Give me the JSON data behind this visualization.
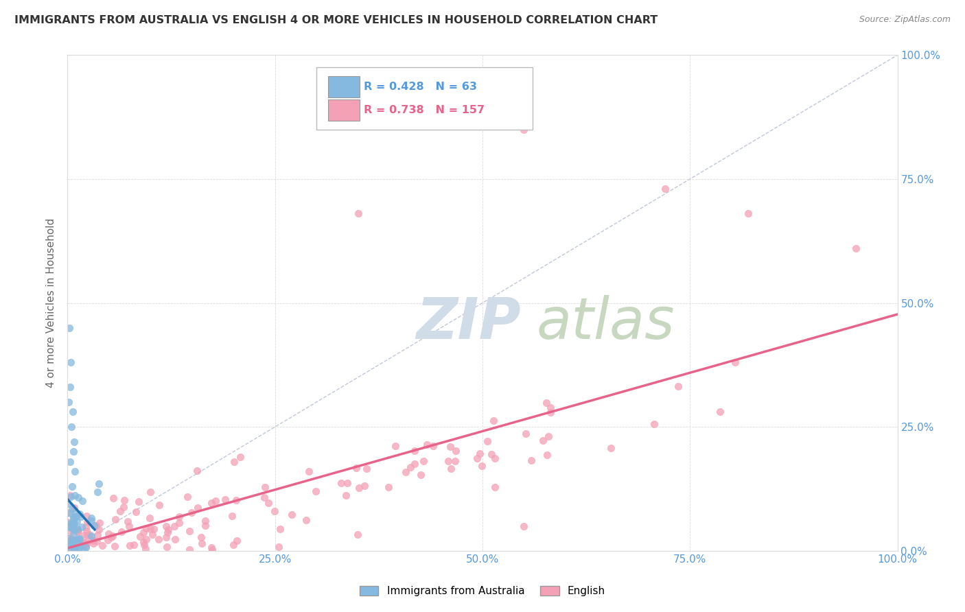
{
  "title": "IMMIGRANTS FROM AUSTRALIA VS ENGLISH 4 OR MORE VEHICLES IN HOUSEHOLD CORRELATION CHART",
  "source": "Source: ZipAtlas.com",
  "ylabel": "4 or more Vehicles in Household",
  "legend1_label": "Immigrants from Australia",
  "legend2_label": "English",
  "R1": 0.428,
  "N1": 63,
  "R2": 0.738,
  "N2": 157,
  "blue_color": "#85b9e0",
  "pink_color": "#f4a0b5",
  "blue_line_color": "#2171b5",
  "pink_line_color": "#e8638a",
  "axis_label_color": "#5599dd",
  "title_color": "#333333",
  "source_color": "#888888",
  "ylabel_color": "#666666",
  "watermark_zip_color": "#d0dce8",
  "watermark_atlas_color": "#c8d8c0",
  "grid_color": "#dddddd",
  "diagonal_color": "#c0c8d8"
}
